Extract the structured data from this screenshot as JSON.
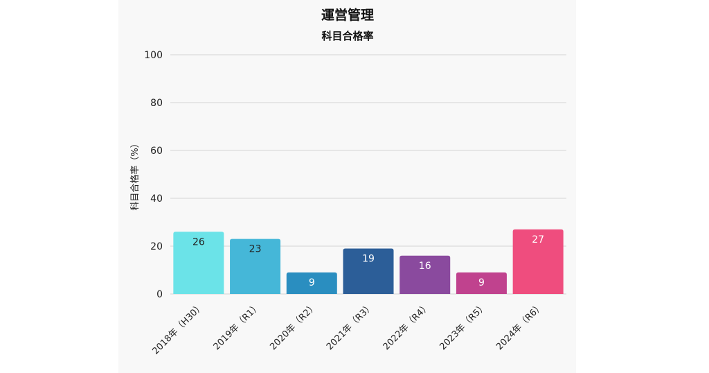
{
  "chart_data": {
    "type": "bar",
    "title": "運営管理",
    "subtitle": "科目合格率",
    "ylabel": "科目合格率（%）",
    "xlabel": "",
    "ylim": [
      0,
      100
    ],
    "yticks": [
      0,
      20,
      40,
      60,
      80,
      100
    ],
    "grid": true,
    "categories": [
      "2018年（H30）",
      "2019年（R1）",
      "2020年（R2）",
      "2021年（R3）",
      "2022年（R4）",
      "2023年（R5）",
      "2024年（R6）"
    ],
    "values": [
      26,
      23,
      9,
      19,
      16,
      9,
      27
    ],
    "colors": [
      "#6be3e8",
      "#45b7d8",
      "#2a8ec0",
      "#2c5e98",
      "#8a4a9e",
      "#c0428e",
      "#ef4d7e"
    ],
    "label_colors": [
      "#222222",
      "#222222",
      "#ffffff",
      "#ffffff",
      "#ffffff",
      "#ffffff",
      "#ffffff"
    ]
  }
}
